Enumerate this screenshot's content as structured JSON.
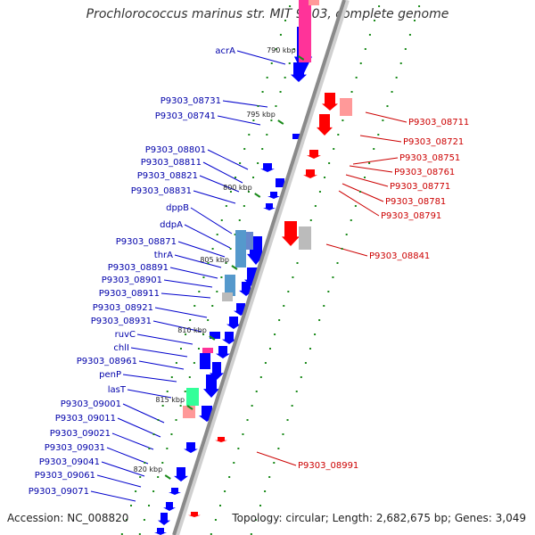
{
  "title": "Prochlorococcus marinus str. MIT 9303, complete genome",
  "accession": "Accession: NC_008820",
  "topology": "Topology: circular; Length: 2,682,675 bp; Genes: 3,049",
  "ruler_ticks": [
    "790 kbp",
    "795 kbp",
    "800 kbp",
    "805 kbp",
    "810 kbp",
    "815 kbp",
    "820 kbp"
  ],
  "left_labels": [
    "acrA",
    "P9303_08731",
    "P9303_08741",
    "P9303_08801",
    "P9303_08811",
    "P9303_08821",
    "P9303_08831",
    "dppB",
    "ddpA",
    "P9303_08871",
    "thrA",
    "P9303_08891",
    "P9303_08901",
    "P9303_08911",
    "P9303_08921",
    "P9303_08931",
    "ruvC",
    "chlI",
    "P9303_08961",
    "penP",
    "lasT",
    "P9303_09001",
    "P9303_09011",
    "P9303_09021",
    "P9303_09031",
    "P9303_09041",
    "P9303_09061",
    "P9303_09071"
  ],
  "right_labels": [
    "P9303_08711",
    "P9303_08721",
    "P9303_08751",
    "P9303_08761",
    "P9303_08771",
    "P9303_08781",
    "P9303_08791",
    "P9303_08841",
    "P9303_08991"
  ],
  "colors": {
    "backbone": "#8a8a8a",
    "forward_gene": "#0000ff",
    "reverse_gene": "#ff0000",
    "left_label": "#0000aa",
    "right_label": "#cc0000",
    "tick": "#1a8a1a"
  }
}
